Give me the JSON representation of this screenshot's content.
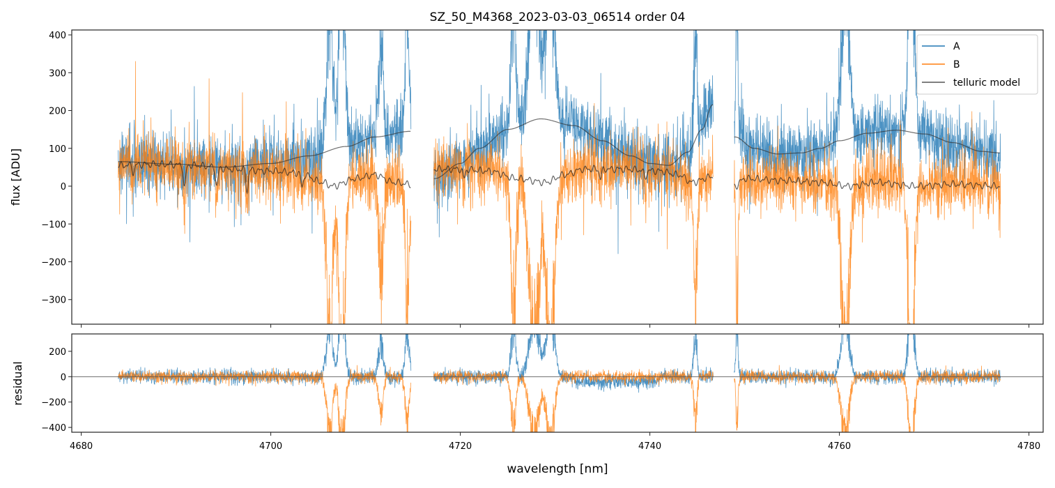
{
  "chart_data": [
    {
      "panel": "main",
      "type": "line",
      "title": "SZ_50_M4368_2023-03-03_06514  order 04",
      "xlabel": "",
      "ylabel": "flux [ADU]",
      "xlim": [
        4679.0,
        4781.5
      ],
      "ylim": [
        -365,
        413
      ],
      "xticks": [
        4680,
        4700,
        4720,
        4740,
        4760,
        4780
      ],
      "yticks": [
        -300,
        -200,
        -100,
        0,
        100,
        200,
        300,
        400
      ],
      "ytick_labels": [
        "−300",
        "−200",
        "−100",
        "0",
        "100",
        "200",
        "300",
        "400"
      ],
      "legend": {
        "placement": "top-right",
        "entries": [
          "A",
          "B",
          "telluric model"
        ]
      },
      "colors": {
        "A": "#1f77b4",
        "B": "#ff7f0e",
        "telluric model": "#444444"
      },
      "segments": [
        [
          4683.9,
          4714.8
        ],
        [
          4717.2,
          4746.7
        ],
        [
          4748.9,
          4777.0
        ]
      ],
      "telluric_model_A": [
        [
          [
            4683.9,
            65
          ],
          [
            4690,
            58
          ],
          [
            4695,
            50
          ],
          [
            4700,
            60
          ],
          [
            4704,
            80
          ],
          [
            4708,
            105
          ],
          [
            4711,
            130
          ],
          [
            4714.7,
            145
          ]
        ],
        [
          [
            4717.3,
            20
          ],
          [
            4720,
            60
          ],
          [
            4722,
            100
          ],
          [
            4725,
            150
          ],
          [
            4728.5,
            178
          ],
          [
            4732,
            160
          ],
          [
            4735,
            120
          ],
          [
            4738,
            80
          ],
          [
            4740,
            60
          ],
          [
            4742,
            55
          ],
          [
            4744,
            90
          ],
          [
            4745.5,
            150
          ],
          [
            4746.6,
            215
          ]
        ],
        [
          [
            4749,
            130
          ],
          [
            4751,
            100
          ],
          [
            4753.5,
            85
          ],
          [
            4756,
            88
          ],
          [
            4758,
            100
          ],
          [
            4760,
            120
          ],
          [
            4763,
            140
          ],
          [
            4766,
            148
          ],
          [
            4769,
            138
          ],
          [
            4772,
            115
          ],
          [
            4775,
            92
          ],
          [
            4776.9,
            88
          ]
        ]
      ],
      "telluric_model_B": [
        [
          [
            4683.9,
            55
          ],
          [
            4688,
            58
          ],
          [
            4692,
            55
          ],
          [
            4696,
            45
          ],
          [
            4700,
            40
          ],
          [
            4703,
            35
          ],
          [
            4705.5,
            10
          ],
          [
            4706.5,
            0
          ],
          [
            4709,
            20
          ],
          [
            4711,
            30
          ],
          [
            4713,
            10
          ],
          [
            4714.7,
            5
          ]
        ],
        [
          [
            4717.3,
            45
          ],
          [
            4720,
            45
          ],
          [
            4723,
            40
          ],
          [
            4726,
            20
          ],
          [
            4729,
            10
          ],
          [
            4731,
            30
          ],
          [
            4733,
            45
          ],
          [
            4737,
            45
          ],
          [
            4741,
            40
          ],
          [
            4743,
            30
          ],
          [
            4744.5,
            10
          ],
          [
            4746.5,
            25
          ]
        ],
        [
          [
            4749,
            0
          ],
          [
            4750,
            20
          ],
          [
            4754,
            15
          ],
          [
            4758,
            10
          ],
          [
            4761,
            0
          ],
          [
            4764,
            10
          ],
          [
            4768,
            0
          ],
          [
            4772,
            5
          ],
          [
            4776.9,
            0
          ]
        ]
      ],
      "B_absorption_lines": [
        [
          4685.5,
          20
        ],
        [
          4690.9,
          60
        ],
        [
          4694.3,
          50
        ],
        [
          4697.5,
          55
        ],
        [
          4703.3,
          40
        ],
        [
          4716.2,
          30
        ],
        [
          4720.4,
          25
        ],
        [
          4734.8,
          25
        ],
        [
          4739.5,
          20
        ]
      ],
      "emission_features": [
        {
          "center": 4706.2,
          "width": 0.3,
          "amp": 450
        },
        {
          "center": 4707.5,
          "width": 0.3,
          "amp": 500
        },
        {
          "center": 4711.6,
          "width": 0.25,
          "amp": 250
        },
        {
          "center": 4714.4,
          "width": 0.2,
          "amp": 350
        },
        {
          "center": 4725.6,
          "width": 0.25,
          "amp": 350
        },
        {
          "center": 4727.8,
          "width": 0.5,
          "amp": 450
        },
        {
          "center": 4729.5,
          "width": 0.4,
          "amp": 450
        },
        {
          "center": 4744.8,
          "width": 0.15,
          "amp": 380
        },
        {
          "center": 4749.2,
          "width": 0.12,
          "amp": 300
        },
        {
          "center": 4760.6,
          "width": 0.4,
          "amp": 460
        },
        {
          "center": 4767.6,
          "width": 0.3,
          "amp": 500
        }
      ],
      "noise_sigma": 40
    },
    {
      "panel": "residual",
      "type": "line",
      "xlabel": "wavelength [nm]",
      "ylabel": "residual",
      "xlim": [
        4679.0,
        4781.5
      ],
      "ylim": [
        -438,
        337
      ],
      "xticks": [
        4680,
        4700,
        4720,
        4740,
        4760,
        4780
      ],
      "yticks": [
        -400,
        -200,
        0,
        200
      ],
      "ytick_labels": [
        "−400",
        "−200",
        "0",
        "200"
      ],
      "series": [
        "A",
        "B"
      ],
      "zero_line": 0,
      "noise_sigma": 30
    }
  ]
}
